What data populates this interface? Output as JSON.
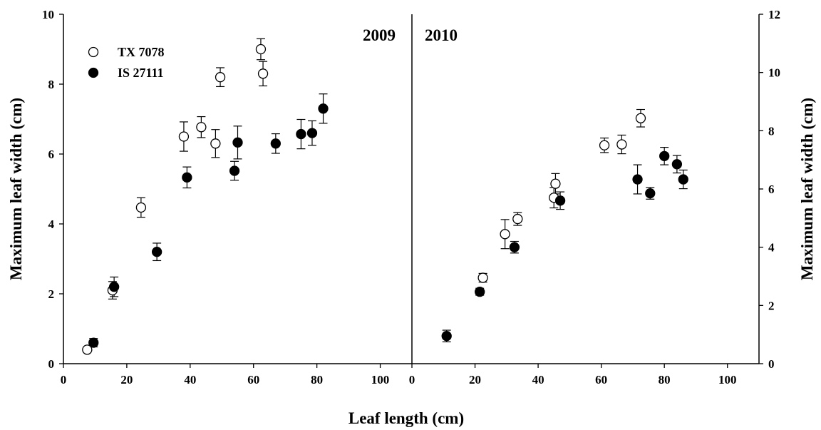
{
  "chart_data": {
    "type": "scatter",
    "xlabel": "Leaf length (cm)",
    "ylabel_left": "Maximum leaf width (cm)",
    "ylabel_right": "Maximum leaf width (cm)",
    "grid": false,
    "legend_position": "top-left",
    "panels": [
      {
        "label": "2009",
        "xlim": [
          0,
          110
        ],
        "ylim": [
          0,
          10
        ],
        "xticks": [
          "0",
          "20",
          "40",
          "60",
          "80",
          "100"
        ],
        "yticks": [
          "0",
          "2",
          "4",
          "6",
          "8",
          "10"
        ],
        "series": [
          {
            "name": "TX 7078",
            "marker": "open-circle",
            "points": [
              {
                "x": 7.5,
                "y": 0.4,
                "err": 0.0
              },
              {
                "x": 15.5,
                "y": 2.1,
                "err": 0.25
              },
              {
                "x": 24.5,
                "y": 4.47,
                "err": 0.28
              },
              {
                "x": 38.0,
                "y": 6.5,
                "err": 0.42
              },
              {
                "x": 43.5,
                "y": 6.77,
                "err": 0.3
              },
              {
                "x": 48.0,
                "y": 6.3,
                "err": 0.4
              },
              {
                "x": 49.5,
                "y": 8.2,
                "err": 0.27
              },
              {
                "x": 62.3,
                "y": 9.0,
                "err": 0.3
              },
              {
                "x": 63.0,
                "y": 8.3,
                "err": 0.35
              }
            ]
          },
          {
            "name": "IS 27111",
            "marker": "filled-circle",
            "points": [
              {
                "x": 9.5,
                "y": 0.6,
                "err": 0.12
              },
              {
                "x": 16.0,
                "y": 2.2,
                "err": 0.28
              },
              {
                "x": 29.5,
                "y": 3.2,
                "err": 0.25
              },
              {
                "x": 39.0,
                "y": 5.33,
                "err": 0.3
              },
              {
                "x": 54.0,
                "y": 5.52,
                "err": 0.27
              },
              {
                "x": 55.0,
                "y": 6.33,
                "err": 0.47
              },
              {
                "x": 67.0,
                "y": 6.3,
                "err": 0.28
              },
              {
                "x": 75.0,
                "y": 6.57,
                "err": 0.42
              },
              {
                "x": 78.5,
                "y": 6.6,
                "err": 0.35
              },
              {
                "x": 82.0,
                "y": 7.3,
                "err": 0.42
              }
            ]
          }
        ]
      },
      {
        "label": "2010",
        "xlim": [
          0,
          110
        ],
        "ylim": [
          0,
          12
        ],
        "xticks": [
          "0",
          "20",
          "40",
          "60",
          "80",
          "100"
        ],
        "yticks": [
          "0",
          "2",
          "4",
          "6",
          "8",
          "10",
          "12"
        ],
        "series": [
          {
            "name": "TX 7078",
            "marker": "open-circle",
            "points": [
              {
                "x": 22.5,
                "y": 2.95,
                "err": 0.15
              },
              {
                "x": 29.5,
                "y": 4.45,
                "err": 0.5
              },
              {
                "x": 33.5,
                "y": 4.97,
                "err": 0.22
              },
              {
                "x": 45.0,
                "y": 5.7,
                "err": 0.35
              },
              {
                "x": 45.5,
                "y": 6.18,
                "err": 0.35
              },
              {
                "x": 61.0,
                "y": 7.5,
                "err": 0.25
              },
              {
                "x": 66.5,
                "y": 7.53,
                "err": 0.32
              },
              {
                "x": 72.5,
                "y": 8.43,
                "err": 0.3
              }
            ]
          },
          {
            "name": "IS 27111",
            "marker": "filled-circle",
            "points": [
              {
                "x": 11.0,
                "y": 0.95,
                "err": 0.2
              },
              {
                "x": 21.5,
                "y": 2.47,
                "err": 0.12
              },
              {
                "x": 32.5,
                "y": 4.0,
                "err": 0.2
              },
              {
                "x": 47.0,
                "y": 5.6,
                "err": 0.3
              },
              {
                "x": 71.5,
                "y": 6.33,
                "err": 0.5
              },
              {
                "x": 75.5,
                "y": 5.85,
                "err": 0.2
              },
              {
                "x": 80.0,
                "y": 7.13,
                "err": 0.3
              },
              {
                "x": 84.0,
                "y": 6.85,
                "err": 0.3
              },
              {
                "x": 86.0,
                "y": 6.33,
                "err": 0.32
              }
            ]
          }
        ]
      }
    ]
  }
}
